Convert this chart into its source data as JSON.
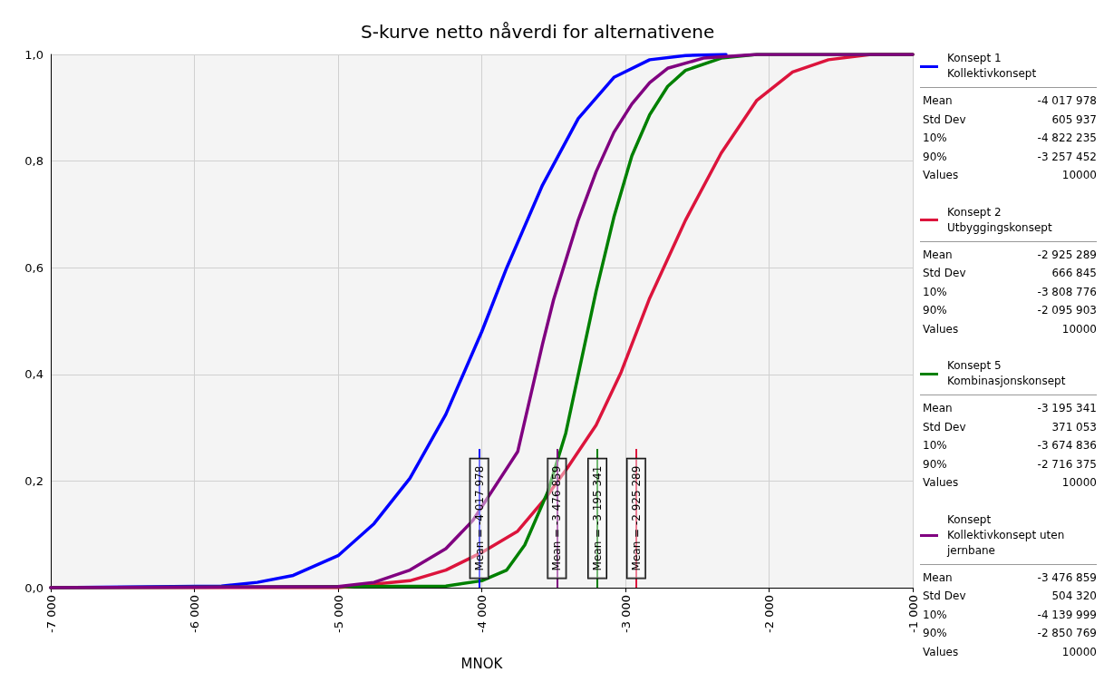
{
  "chart_data": {
    "type": "line",
    "title": "S-kurve netto nåverdi for alternativene",
    "xlabel": "MNOK",
    "xlim": [
      -7000,
      -1000
    ],
    "xticks": [
      {
        "value": -7000,
        "label": "-7 000"
      },
      {
        "value": -6000,
        "label": "-6 000"
      },
      {
        "value": -5000,
        "label": "-5 000"
      },
      {
        "value": -4000,
        "label": "-4 000"
      },
      {
        "value": -3000,
        "label": "-3 000"
      },
      {
        "value": -2000,
        "label": "-2 000"
      },
      {
        "value": -1000,
        "label": "-1 000"
      }
    ],
    "ylim": [
      0,
      1
    ],
    "yticks": [
      {
        "value": 0,
        "label": "0,0"
      },
      {
        "value": 0.2,
        "label": "0,2"
      },
      {
        "value": 0.4,
        "label": "0,4"
      },
      {
        "value": 0.6,
        "label": "0,6"
      },
      {
        "value": 0.8,
        "label": "0,8"
      },
      {
        "value": 1,
        "label": "1,0"
      }
    ],
    "grid": true,
    "legend": "right",
    "marker": "none",
    "line_style": "solid",
    "series": [
      {
        "name": "Konsept 1\nKollektivkonsept",
        "color": "#0000ff",
        "x": [
          -7000,
          -5812,
          -5562,
          -5312,
          -5000,
          -4750,
          -4500,
          -4250,
          -4000,
          -3826,
          -3577,
          -3328,
          -3080,
          -2831,
          -2582,
          -2300
        ],
        "values": [
          0,
          0.003,
          0.01,
          0.023,
          0.06,
          0.12,
          0.205,
          0.325,
          0.48,
          0.6,
          0.755,
          0.88,
          0.957,
          0.99,
          0.998,
          1
        ]
      },
      {
        "name": "Konsept 2\nUtbyggingskonsept",
        "color": "#dc143c",
        "x": [
          -7000,
          -5000,
          -4500,
          -4250,
          -4000,
          -3750,
          -3562,
          -3403,
          -3204,
          -3030,
          -2831,
          -2582,
          -2333,
          -2085,
          -1836,
          -1587,
          -1289,
          -1000
        ],
        "values": [
          0,
          0,
          0.013,
          0.033,
          0.066,
          0.106,
          0.166,
          0.225,
          0.305,
          0.404,
          0.543,
          0.689,
          0.815,
          0.914,
          0.967,
          0.99,
          1,
          1
        ]
      },
      {
        "name": "Konsept 5\nKombinasjonskonsept",
        "color": "#008000",
        "x": [
          -7000,
          -4250,
          -4000,
          -3826,
          -3701,
          -3540,
          -3415,
          -3328,
          -3204,
          -3080,
          -2955,
          -2831,
          -2706,
          -2582,
          -2333,
          -2085,
          -1000
        ],
        "values": [
          0,
          0.003,
          0.013,
          0.033,
          0.08,
          0.18,
          0.29,
          0.4,
          0.556,
          0.695,
          0.81,
          0.887,
          0.94,
          0.97,
          0.993,
          1,
          1
        ]
      },
      {
        "name": "Konsept\nKollektivkonsept uten jernbane",
        "color": "#800080",
        "x": [
          -7000,
          -5000,
          -4750,
          -4500,
          -4250,
          -4062,
          -3750,
          -3577,
          -3500,
          -3328,
          -3204,
          -3080,
          -2955,
          -2831,
          -2706,
          -2458,
          -2085,
          -1000
        ],
        "values": [
          0,
          0.002,
          0.01,
          0.033,
          0.073,
          0.126,
          0.255,
          0.457,
          0.54,
          0.69,
          0.78,
          0.854,
          0.907,
          0.947,
          0.974,
          0.993,
          1,
          1
        ]
      }
    ],
    "ref_lines": [
      {
        "axis": "x",
        "value": -4017.978,
        "label": "Mean = -4 017 978",
        "color": "#0000ff"
      },
      {
        "axis": "x",
        "value": -3476.859,
        "label": "Mean = -3 476 859",
        "color": "#800080"
      },
      {
        "axis": "x",
        "value": -3195.341,
        "label": "Mean = -3 195 341",
        "color": "#008000"
      },
      {
        "axis": "x",
        "value": -2925.289,
        "label": "Mean = -2 925 289",
        "color": "#dc143c"
      }
    ],
    "annotations": [
      "Mean",
      "-4 017 978",
      "Std Dev",
      "605 937",
      "10%",
      "-4 822 235",
      "90%",
      "-3 257 452",
      "Values",
      "10000",
      "Mean",
      "-2 925 289",
      "Std Dev",
      "666 845",
      "10%",
      "-3 808 776",
      "90%",
      "-2 095 903",
      "Values",
      "10000",
      "Mean",
      "-3 195 341",
      "Std Dev",
      "371 053",
      "10%",
      "-3 674 836",
      "90%",
      "-2 716 375",
      "Values",
      "10000",
      "Mean",
      "-3 476 859",
      "Std Dev",
      "504 320",
      "10%",
      "-4 139 999",
      "90%",
      "-2 850 769",
      "Values",
      "10000"
    ]
  }
}
